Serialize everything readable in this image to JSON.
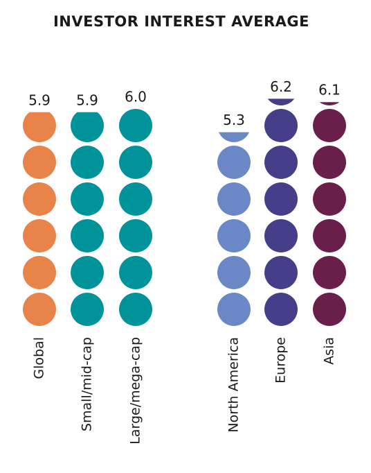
{
  "chart_data": {
    "type": "pictogram",
    "title": "INVESTOR INTEREST AVERAGE",
    "categories": [
      "Global",
      "Small/mid-cap",
      "Large/mega-cap",
      "North America",
      "Europe",
      "Asia"
    ],
    "values": [
      5.9,
      5.9,
      6.0,
      5.3,
      6.2,
      6.1
    ],
    "value_labels": [
      "5.9",
      "5.9",
      "6.0",
      "5.3",
      "6.2",
      "6.1"
    ],
    "colors": [
      "#e8834a",
      "#00939a",
      "#00939a",
      "#6a87c6",
      "#453f8a",
      "#6a1f4a"
    ]
  }
}
